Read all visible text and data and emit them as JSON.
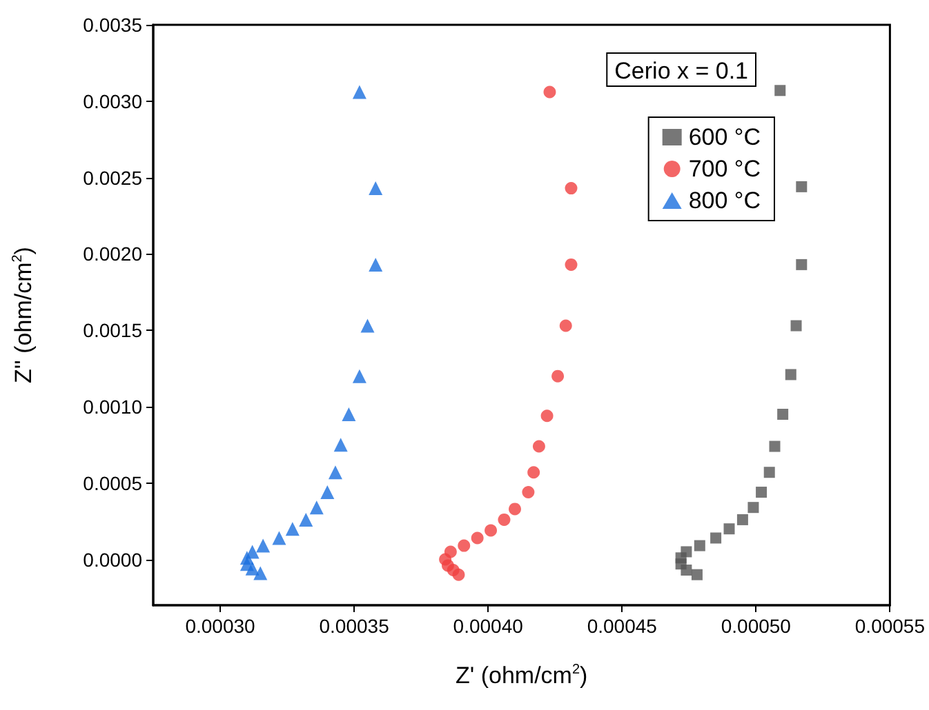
{
  "chart_data": {
    "type": "scatter",
    "xlabel": "Z' (ohm/cm$^{2}$)",
    "ylabel": "Z'' (ohm/cm$^{2}$)",
    "annotations": [
      "Cerio x = 0.1"
    ],
    "xlim": [
      0.000275,
      0.00055
    ],
    "xticks": [
      {
        "value": 0.0003,
        "label": "0.00030"
      },
      {
        "value": 0.00035,
        "label": "0.00035"
      },
      {
        "value": 0.0004,
        "label": "0.00040"
      },
      {
        "value": 0.00045,
        "label": "0.00045"
      },
      {
        "value": 0.0005,
        "label": "0.00050"
      },
      {
        "value": 0.00055,
        "label": "0.00055"
      }
    ],
    "ylim": [
      -0.0003,
      0.0035
    ],
    "yticks": [
      {
        "value": 0,
        "label": "0.0000"
      },
      {
        "value": 0.0005,
        "label": "0.0005"
      },
      {
        "value": 0.001,
        "label": "0.0010"
      },
      {
        "value": 0.0015,
        "label": "0.0015"
      },
      {
        "value": 0.002,
        "label": "0.0020"
      },
      {
        "value": 0.0025,
        "label": "0.0025"
      },
      {
        "value": 0.003,
        "label": "0.0030"
      },
      {
        "value": 0.0035,
        "label": "0.0035"
      }
    ],
    "grid": false,
    "legend": "top right",
    "series": [
      {
        "name": "600 °C",
        "color": "#555555",
        "marker": "square",
        "x": [
          0.000509,
          0.000517,
          0.000517,
          0.000515,
          0.000513,
          0.00051,
          0.000507,
          0.000505,
          0.000502,
          0.000499,
          0.000495,
          0.00049,
          0.000485,
          0.000479,
          0.000474,
          0.000472,
          0.000472,
          0.000474,
          0.000478
        ],
        "values": [
          0.00307,
          0.00244,
          0.00193,
          0.00153,
          0.00121,
          0.00095,
          0.00074,
          0.00057,
          0.00044,
          0.00034,
          0.00026,
          0.0002,
          0.00014,
          9e-05,
          5e-05,
          1e-05,
          -3e-05,
          -7e-05,
          -0.0001
        ]
      },
      {
        "name": "700 °C",
        "color": "#f04040",
        "marker": "circle",
        "x": [
          0.000423,
          0.000431,
          0.000431,
          0.000429,
          0.000426,
          0.000422,
          0.000419,
          0.000417,
          0.000415,
          0.00041,
          0.000406,
          0.000401,
          0.000396,
          0.000391,
          0.000386,
          0.000384,
          0.000385,
          0.000387,
          0.000389
        ],
        "values": [
          0.00306,
          0.00243,
          0.00193,
          0.00153,
          0.0012,
          0.00094,
          0.00074,
          0.00057,
          0.00044,
          0.00033,
          0.00026,
          0.00019,
          0.00014,
          9e-05,
          5e-05,
          0.0,
          -4e-05,
          -7e-05,
          -0.0001
        ]
      },
      {
        "name": "800 °C",
        "color": "#1a6fdf",
        "marker": "triangle",
        "x": [
          0.000352,
          0.000358,
          0.000358,
          0.000355,
          0.000352,
          0.000348,
          0.000345,
          0.000343,
          0.00034,
          0.000336,
          0.000332,
          0.000327,
          0.000322,
          0.000316,
          0.000312,
          0.00031,
          0.00031,
          0.000312,
          0.000315
        ],
        "values": [
          0.00306,
          0.00243,
          0.00193,
          0.00153,
          0.0012,
          0.00095,
          0.00075,
          0.00057,
          0.00044,
          0.00034,
          0.00026,
          0.0002,
          0.00014,
          9e-05,
          5e-05,
          1e-05,
          -3e-05,
          -6e-05,
          -9e-05
        ]
      }
    ]
  }
}
